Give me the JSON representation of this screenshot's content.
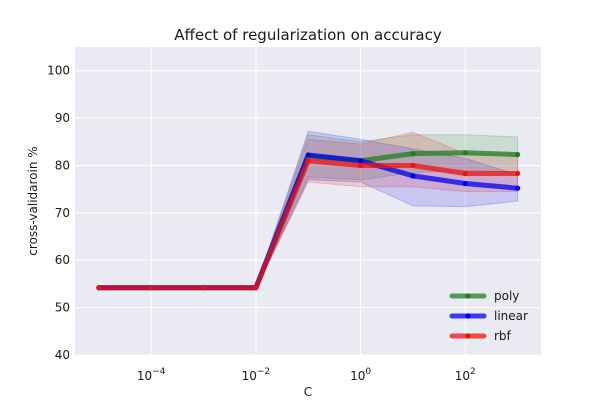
{
  "chart_data": {
    "type": "line",
    "title": "Affect of regularization on accuracy",
    "xlabel": "C",
    "ylabel": "cross-validaroin %",
    "x_scale": "log",
    "x": [
      1e-05,
      0.0001,
      0.001,
      0.01,
      0.1,
      1,
      10,
      100,
      1000
    ],
    "xlim": [
      3.5e-06,
      2800
    ],
    "ylim": [
      40,
      105
    ],
    "x_ticks": [
      {
        "value": 0.0001,
        "base": "10",
        "exp": "−4"
      },
      {
        "value": 0.01,
        "base": "10",
        "exp": "−2"
      },
      {
        "value": 1,
        "base": "10",
        "exp": "0"
      },
      {
        "value": 100,
        "base": "10",
        "exp": "2"
      }
    ],
    "y_ticks": [
      {
        "value": 40,
        "label": "40"
      },
      {
        "value": 50,
        "label": "50"
      },
      {
        "value": 60,
        "label": "60"
      },
      {
        "value": 70,
        "label": "70"
      },
      {
        "value": 80,
        "label": "80"
      },
      {
        "value": 90,
        "label": "90"
      },
      {
        "value": 100,
        "label": "100"
      }
    ],
    "grid": true,
    "legend_position": "lower-right",
    "series": [
      {
        "name": "poly",
        "color": "#1e7f1e",
        "values": [
          54.2,
          54.2,
          54.2,
          54.2,
          82.0,
          81.0,
          82.5,
          82.7,
          82.3
        ],
        "lower": [
          54.0,
          54.0,
          54.0,
          54.0,
          77.5,
          77.0,
          78.5,
          79.0,
          78.5
        ],
        "upper": [
          54.4,
          54.4,
          54.4,
          54.4,
          86.5,
          85.0,
          86.5,
          86.5,
          86.0
        ]
      },
      {
        "name": "linear",
        "color": "#0000ee",
        "values": [
          54.2,
          54.2,
          54.2,
          54.2,
          82.2,
          81.0,
          77.8,
          76.2,
          75.2
        ],
        "lower": [
          54.0,
          54.0,
          54.0,
          54.0,
          77.0,
          76.5,
          71.5,
          71.3,
          72.5
        ],
        "upper": [
          54.4,
          54.4,
          54.4,
          54.4,
          87.2,
          85.5,
          83.5,
          81.5,
          78.0
        ]
      },
      {
        "name": "rbf",
        "color": "#ee1111",
        "values": [
          54.2,
          54.2,
          54.2,
          54.2,
          81.0,
          80.0,
          80.0,
          78.3,
          78.3
        ],
        "lower": [
          54.0,
          54.0,
          54.0,
          54.0,
          76.5,
          75.5,
          75.5,
          74.5,
          74.5
        ],
        "upper": [
          54.4,
          54.4,
          54.4,
          54.4,
          85.5,
          84.5,
          87.0,
          82.5,
          82.5
        ]
      }
    ]
  }
}
